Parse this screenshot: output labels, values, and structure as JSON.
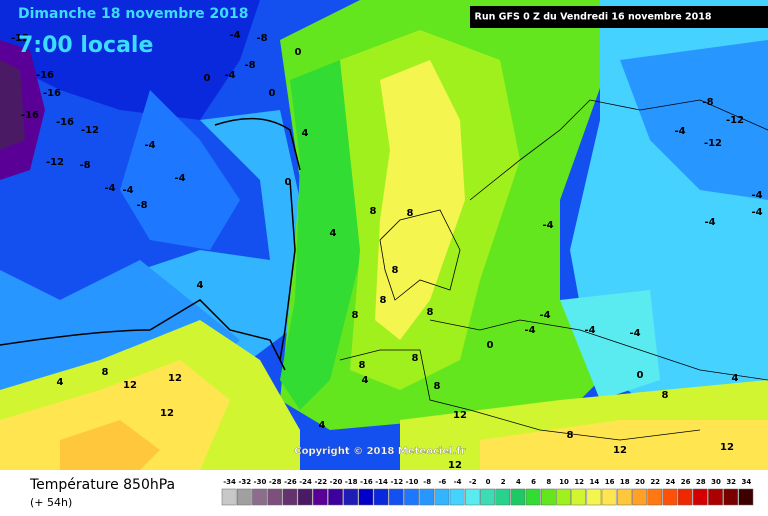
{
  "header": {
    "date": "Dimanche 18 novembre 2018",
    "time": "7:00 locale",
    "run": "Run GFS 0 Z du Vendredi 16 novembre 2018"
  },
  "map": {
    "copyright": "Copyright © 2018 Meteociel.fr",
    "contour_labels": [
      -12,
      -16,
      -16,
      -16,
      -16,
      -12,
      -12,
      -8,
      -4,
      -4,
      -4,
      -4,
      -8,
      -4,
      -8,
      -8,
      -4,
      0,
      0,
      0,
      4,
      0,
      4,
      8,
      8,
      8,
      8,
      8,
      8,
      4,
      4,
      4,
      4,
      8,
      12,
      12,
      12,
      8,
      0,
      8,
      8,
      12,
      12,
      -8,
      -12,
      -12,
      -4,
      -4,
      -4,
      -4,
      -4,
      -4,
      -4,
      -4,
      -4,
      0,
      8,
      4,
      12,
      8,
      12
    ]
  },
  "footer": {
    "title": "Température 850hPa",
    "lead": "(+ 54h)"
  },
  "legend": {
    "values": [
      -34,
      -32,
      -30,
      -28,
      -26,
      -24,
      -22,
      -20,
      -18,
      -16,
      -14,
      -12,
      -10,
      -8,
      -6,
      -4,
      -2,
      0,
      2,
      4,
      6,
      8,
      10,
      12,
      14,
      16,
      18,
      20,
      22,
      24,
      26,
      28,
      30,
      32,
      34
    ],
    "colors": [
      "#c8c8c8",
      "#a0a0a0",
      "#8c6e8c",
      "#7d4f7d",
      "#64326e",
      "#4b1a64",
      "#5a0096",
      "#3c00a0",
      "#1e1eb4",
      "#0000c8",
      "#0a28dc",
      "#1450f0",
      "#1e78ff",
      "#2896ff",
      "#32b4ff",
      "#46d2ff",
      "#5aebf0",
      "#3cdcb4",
      "#28d28c",
      "#1ec864",
      "#32dc32",
      "#64e61e",
      "#a0f01e",
      "#d2f532",
      "#f5f550",
      "#ffe650",
      "#ffc83c",
      "#ffa028",
      "#ff7814",
      "#ff500a",
      "#f02800",
      "#d20000",
      "#aa0000",
      "#780000",
      "#3c0000"
    ]
  }
}
